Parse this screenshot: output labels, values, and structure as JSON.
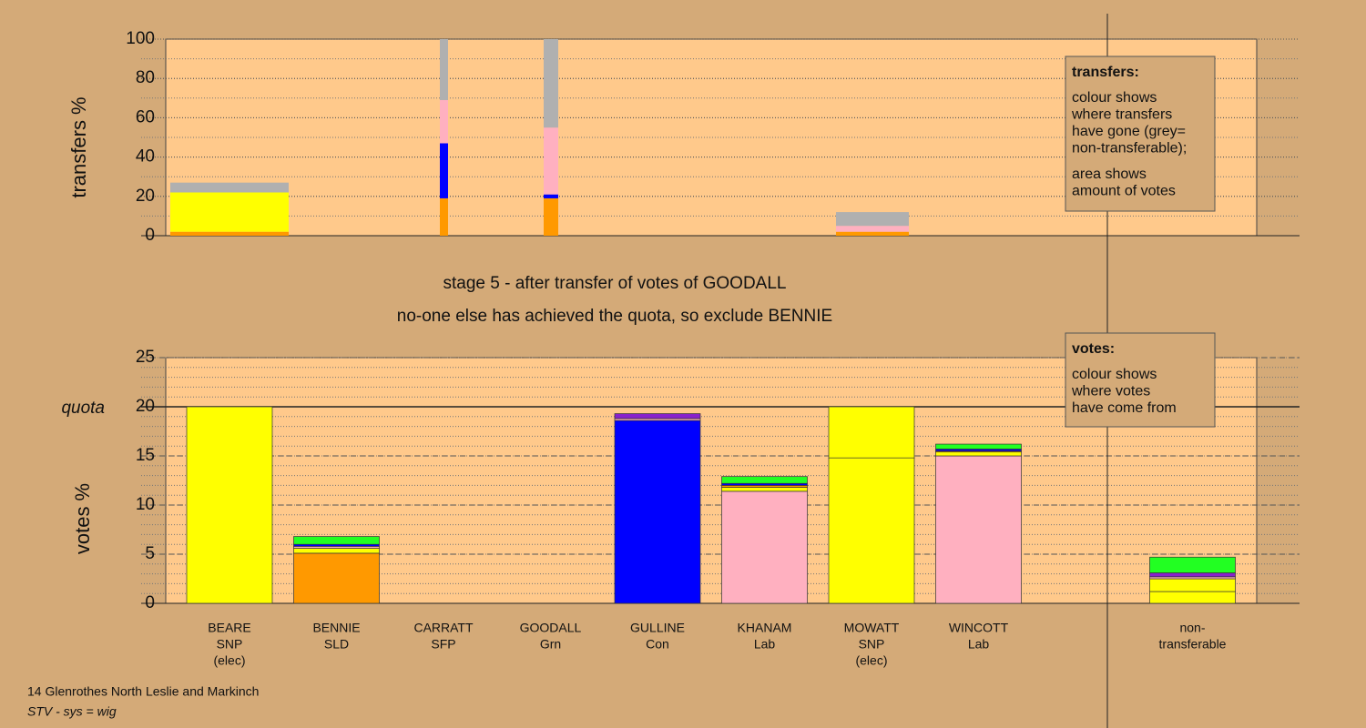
{
  "chart_data": [
    {
      "type": "stacked-bar",
      "ylabel": "transfers %",
      "ylim": [
        0,
        100
      ],
      "yticks": [
        0,
        20,
        40,
        60,
        80,
        100
      ],
      "minor_step": 10,
      "grid": true,
      "widths": [
        13,
        0.9,
        1.6,
        8
      ],
      "stacks": [
        [
          {
            "color": "#ff9900",
            "value": 2
          },
          {
            "color": "#ffff00",
            "value": 20
          },
          {
            "color": "#b0b0b0",
            "value": 5
          }
        ],
        [
          {
            "color": "#ff9900",
            "value": 19
          },
          {
            "color": "#0000ff",
            "value": 28
          },
          {
            "color": "#ffb0c0",
            "value": 22
          },
          {
            "color": "#b0b0b0",
            "value": 31
          }
        ],
        [
          {
            "color": "#ff9900",
            "value": 19
          },
          {
            "color": "#0000ff",
            "value": 2
          },
          {
            "color": "#ffb0c0",
            "value": 34
          },
          {
            "color": "#b0b0b0",
            "value": 45
          }
        ],
        [
          {
            "color": "#ff9900",
            "value": 2
          },
          {
            "color": "#ffb0c0",
            "value": 3
          },
          {
            "color": "#b0b0b0",
            "value": 7
          }
        ]
      ],
      "note": {
        "title": "transfers:",
        "paragraphs": [
          [
            "colour shows",
            "where transfers",
            "have gone (grey=",
            "non-transferable);"
          ],
          [
            "area shows",
            "amount of votes"
          ]
        ]
      }
    },
    {
      "type": "stacked-bar",
      "title": "stage 5 - after transfer of votes of GOODALL",
      "subtitle": "no-one else has achieved the quota, so exclude BENNIE",
      "ylabel": "votes %",
      "ylim": [
        0,
        25
      ],
      "yticks": [
        0,
        5,
        10,
        15,
        20,
        25
      ],
      "minor_step": 1,
      "grid": true,
      "quota": 20,
      "quota_label": "quota",
      "categories": [
        [
          "BEARE",
          "SNP",
          "(elec)"
        ],
        [
          "BENNIE",
          "SLD"
        ],
        [
          "CARRATT",
          "SFP"
        ],
        [
          "GOODALL",
          "Grn"
        ],
        [
          "GULLINE",
          "Con"
        ],
        [
          "KHANAM",
          "Lab"
        ],
        [
          "MOWATT",
          "SNP",
          "(elec)"
        ],
        [
          "WINCOTT",
          "Lab"
        ],
        null,
        [
          "non-",
          "transferable"
        ]
      ],
      "stacks": [
        [
          {
            "color": "#ffff00",
            "value": 20
          }
        ],
        [
          {
            "color": "#ff9900",
            "value": 5.1
          },
          {
            "color": "#ffff00",
            "value": 0.5
          },
          {
            "color": "#ffb0c0",
            "value": 0.2
          },
          {
            "color": "#0000ff",
            "value": 0.2
          },
          {
            "color": "#22ff22",
            "value": 0.8
          }
        ],
        [],
        [],
        [
          {
            "color": "#0000ff",
            "value": 18.6
          },
          {
            "color": "#ffb0c0",
            "value": 0.2
          },
          {
            "color": "#8822cc",
            "value": 0.5
          }
        ],
        [
          {
            "color": "#ffb0c0",
            "value": 11.4
          },
          {
            "color": "#ffff00",
            "value": 0.4
          },
          {
            "color": "#ff9900",
            "value": 0.2
          },
          {
            "color": "#0000ff",
            "value": 0.2
          },
          {
            "color": "#22ff22",
            "value": 0.7
          }
        ],
        [
          {
            "color": "#ffff00",
            "value": 14.8
          },
          {
            "color": "#ffff00",
            "value": 5.2
          }
        ],
        [
          {
            "color": "#ffb0c0",
            "value": 15.0
          },
          {
            "color": "#ffff00",
            "value": 0.4
          },
          {
            "color": "#ff9900",
            "value": 0.1
          },
          {
            "color": "#0000ff",
            "value": 0.2
          },
          {
            "color": "#22ff22",
            "value": 0.5
          }
        ],
        [],
        [
          {
            "color": "#ffff00",
            "value": 1.2
          },
          {
            "color": "#ffff00",
            "value": 1.3
          },
          {
            "color": "#ffb0c0",
            "value": 0.2
          },
          {
            "color": "#8822cc",
            "value": 0.4
          },
          {
            "color": "#22ff22",
            "value": 1.6
          }
        ]
      ],
      "note": {
        "title": "votes:",
        "paragraphs": [
          [
            "colour shows",
            "where votes",
            "have come from"
          ]
        ]
      },
      "footer": [
        "14 Glenrothes North Leslie and Markinch",
        "STV - sys = wig"
      ]
    }
  ]
}
